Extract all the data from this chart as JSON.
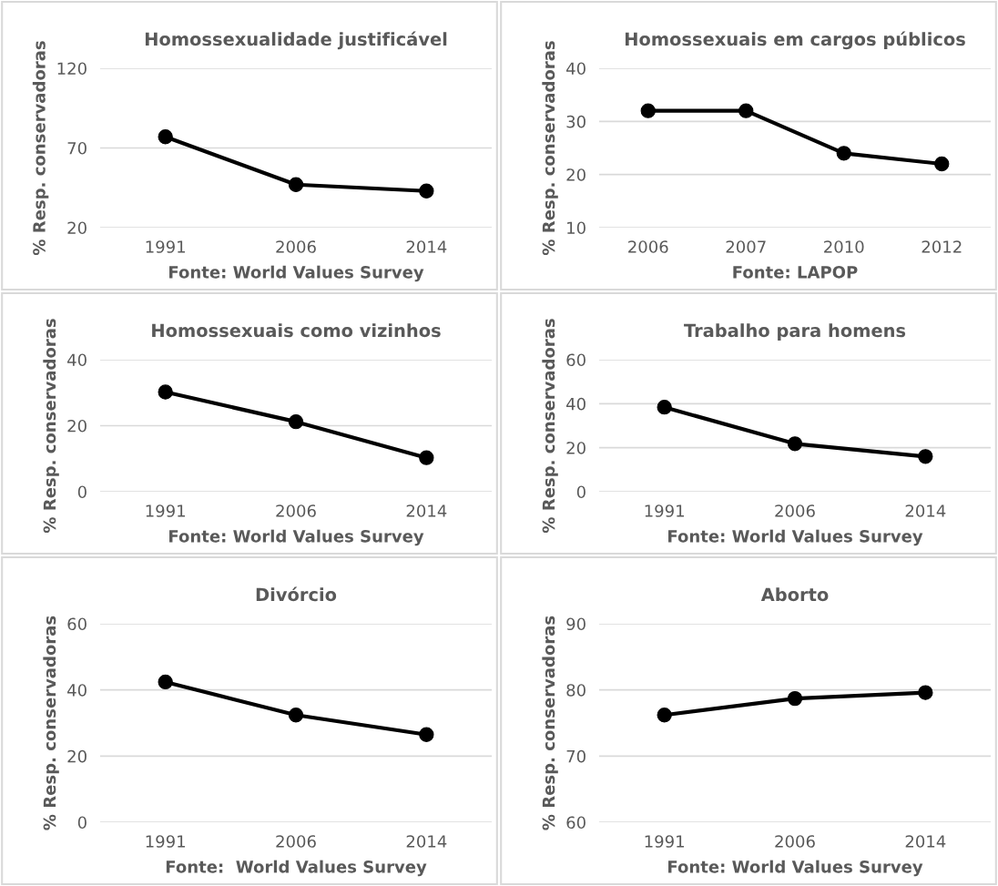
{
  "chart_data": [
    {
      "type": "line",
      "title": "Homossexualidade justificável",
      "ylabel": "% Resp. conservadoras",
      "annotations": [
        "Fonte: World Values Survey"
      ],
      "categories": [
        "1991",
        "2006",
        "2014"
      ],
      "values": [
        77,
        47,
        43
      ],
      "color": "#000000",
      "ylim": [
        20,
        120
      ],
      "yticks": [
        20,
        70,
        120
      ],
      "grid": "y",
      "marker": "circle",
      "line_style": "solid"
    },
    {
      "type": "line",
      "title": "Homossexuais em cargos públicos",
      "ylabel": "% Resp. conservadoras",
      "annotations": [
        "Fonte: LAPOP"
      ],
      "categories": [
        "2006",
        "2007",
        "2010",
        "2012"
      ],
      "values": [
        32,
        32,
        24,
        22
      ],
      "color": "#000000",
      "ylim": [
        10,
        40
      ],
      "yticks": [
        10,
        20,
        30,
        40
      ],
      "grid": "y",
      "marker": "circle",
      "line_style": "solid"
    },
    {
      "type": "line",
      "title": "Homossexuais como vizinhos",
      "ylabel": "% Resp. conservadoras",
      "annotations": [
        "Fonte: World Values Survey"
      ],
      "categories": [
        "1991",
        "2006",
        "2014"
      ],
      "values": [
        30.2,
        21.2,
        10.3
      ],
      "color": "#000000",
      "ylim": [
        0,
        40
      ],
      "yticks": [
        0,
        20,
        40
      ],
      "grid": "y",
      "marker": "circle",
      "line_style": "solid"
    },
    {
      "type": "line",
      "title": "Trabalho para homens",
      "ylabel": "% Resp. conservadoras",
      "annotations": [
        "Fonte: World Values Survey"
      ],
      "categories": [
        "1991",
        "2006",
        "2014"
      ],
      "values": [
        38.4,
        21.8,
        16
      ],
      "color": "#000000",
      "ylim": [
        0,
        60
      ],
      "yticks": [
        0,
        20,
        40,
        60
      ],
      "grid": "y",
      "marker": "circle",
      "line_style": "solid"
    },
    {
      "type": "line",
      "title": "Divórcio",
      "ylabel": "% Resp. conservadoras",
      "annotations": [
        "Fonte:  World Values Survey"
      ],
      "categories": [
        "1991",
        "2006",
        "2014"
      ],
      "values": [
        42.4,
        32.4,
        26.5
      ],
      "color": "#000000",
      "ylim": [
        0,
        60
      ],
      "yticks": [
        0,
        20,
        40,
        60
      ],
      "grid": "y",
      "marker": "circle",
      "line_style": "solid"
    },
    {
      "type": "line",
      "title": "Aborto",
      "ylabel": "% Resp. conservadoras",
      "annotations": [
        "Fonte: World Values Survey"
      ],
      "categories": [
        "1991",
        "2006",
        "2014"
      ],
      "values": [
        76.2,
        78.7,
        79.6
      ],
      "color": "#000000",
      "ylim": [
        60,
        90
      ],
      "yticks": [
        60,
        70,
        80,
        90
      ],
      "grid": "y",
      "marker": "circle",
      "line_style": "solid"
    }
  ]
}
